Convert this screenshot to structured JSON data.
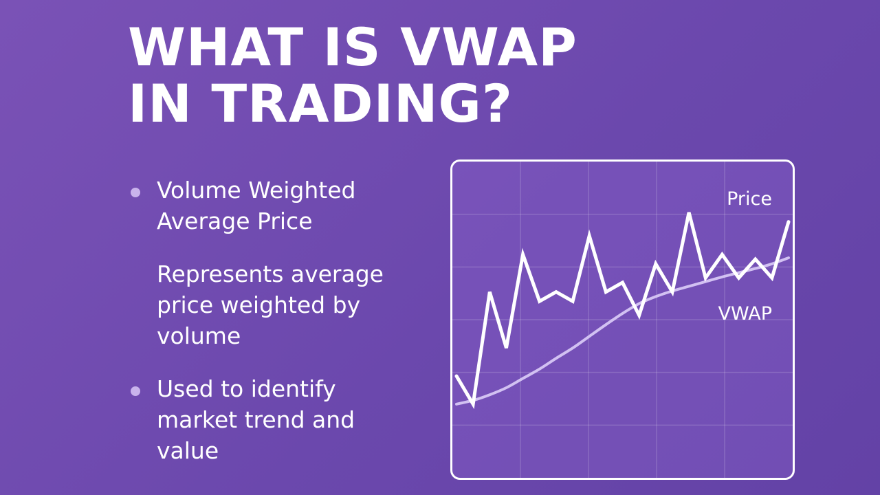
{
  "title": {
    "line1": "WHAT IS VWAP",
    "line2": "IN TRADING?"
  },
  "bullets": [
    {
      "text": "Volume Weighted Average Price",
      "dot": true
    },
    {
      "text": "Represents average price weighted by volume",
      "dot": false
    },
    {
      "text": "Used to identify market trend and value",
      "dot": true
    }
  ],
  "colors": {
    "background": "#6d49ae",
    "price_line": "#ffffff",
    "vwap_line": "#d2c1f2",
    "bullet_dot": "#c9b3ec"
  },
  "chart_data": {
    "type": "line",
    "title": "",
    "xlabel": "",
    "ylabel": "",
    "grid": true,
    "x": [
      0,
      1,
      2,
      3,
      4,
      5,
      6,
      7,
      8,
      9,
      10,
      11,
      12,
      13,
      14,
      15,
      16,
      17,
      18,
      19,
      20
    ],
    "series": [
      {
        "name": "Price",
        "values": [
          20,
          14,
          38,
          26,
          46,
          36,
          38,
          36,
          50,
          38,
          40,
          33,
          44,
          38,
          55,
          41,
          46,
          41,
          45,
          41,
          53
        ]
      },
      {
        "name": "VWAP",
        "values": [
          14,
          14.8,
          16,
          17.5,
          19.5,
          21.5,
          23.8,
          26,
          28.5,
          31,
          33.4,
          35.5,
          37,
          38.2,
          39.2,
          40.2,
          41.2,
          42.1,
          43,
          44,
          45.3
        ]
      }
    ],
    "ylim": [
      0,
      60
    ]
  }
}
